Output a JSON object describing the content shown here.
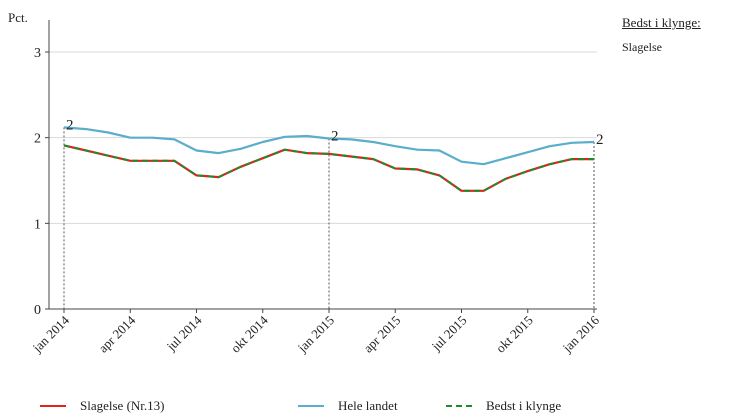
{
  "chart_data": {
    "type": "line",
    "ylabel": "Pct.",
    "ylim": [
      0,
      3.2
    ],
    "yticks": [
      "0",
      "1",
      "2",
      "3"
    ],
    "categories": [
      "jan 2014",
      "feb 2014",
      "mar 2014",
      "apr 2014",
      "maj 2014",
      "jun 2014",
      "jul 2014",
      "aug 2014",
      "sep 2014",
      "okt 2014",
      "nov 2014",
      "dec 2014",
      "jan 2015",
      "feb 2015",
      "mar 2015",
      "apr 2015",
      "maj 2015",
      "jun 2015",
      "jul 2015",
      "aug 2015",
      "sep 2015",
      "okt 2015",
      "nov 2015",
      "dec 2015",
      "jan 2016"
    ],
    "xtick_labels": [
      "jan 2014",
      "apr 2014",
      "jul 2014",
      "okt 2014",
      "jan 2015",
      "apr 2015",
      "jul 2015",
      "okt 2015",
      "jan 2016"
    ],
    "series": [
      {
        "name": "Slagelse (Nr.13)",
        "color": "#e2231a",
        "style": "solid",
        "values": [
          1.91,
          1.85,
          1.79,
          1.73,
          1.73,
          1.73,
          1.56,
          1.54,
          1.66,
          1.76,
          1.86,
          1.82,
          1.81,
          1.78,
          1.75,
          1.64,
          1.63,
          1.56,
          1.38,
          1.38,
          1.52,
          1.61,
          1.69,
          1.75,
          1.75
        ]
      },
      {
        "name": "Hele landet",
        "color": "#5aaecb",
        "style": "solid",
        "values": [
          2.12,
          2.1,
          2.06,
          2.0,
          2.0,
          1.98,
          1.85,
          1.82,
          1.87,
          1.95,
          2.01,
          2.02,
          1.99,
          1.98,
          1.95,
          1.9,
          1.86,
          1.85,
          1.72,
          1.69,
          1.76,
          1.83,
          1.9,
          1.94,
          1.95
        ]
      },
      {
        "name": "Bedst i klynge",
        "color": "#1f8a2e",
        "style": "dashed",
        "values": [
          1.91,
          1.85,
          1.79,
          1.73,
          1.73,
          1.73,
          1.56,
          1.54,
          1.66,
          1.76,
          1.86,
          1.82,
          1.81,
          1.78,
          1.75,
          1.64,
          1.63,
          1.56,
          1.38,
          1.38,
          1.52,
          1.61,
          1.69,
          1.75,
          1.75
        ]
      }
    ],
    "annotations": [
      {
        "index": 0,
        "label": "2"
      },
      {
        "index": 12,
        "label": "2"
      },
      {
        "index": 24,
        "label": "2"
      }
    ],
    "side_title": "Bedst i klynge:",
    "side_value": "Slagelse"
  }
}
